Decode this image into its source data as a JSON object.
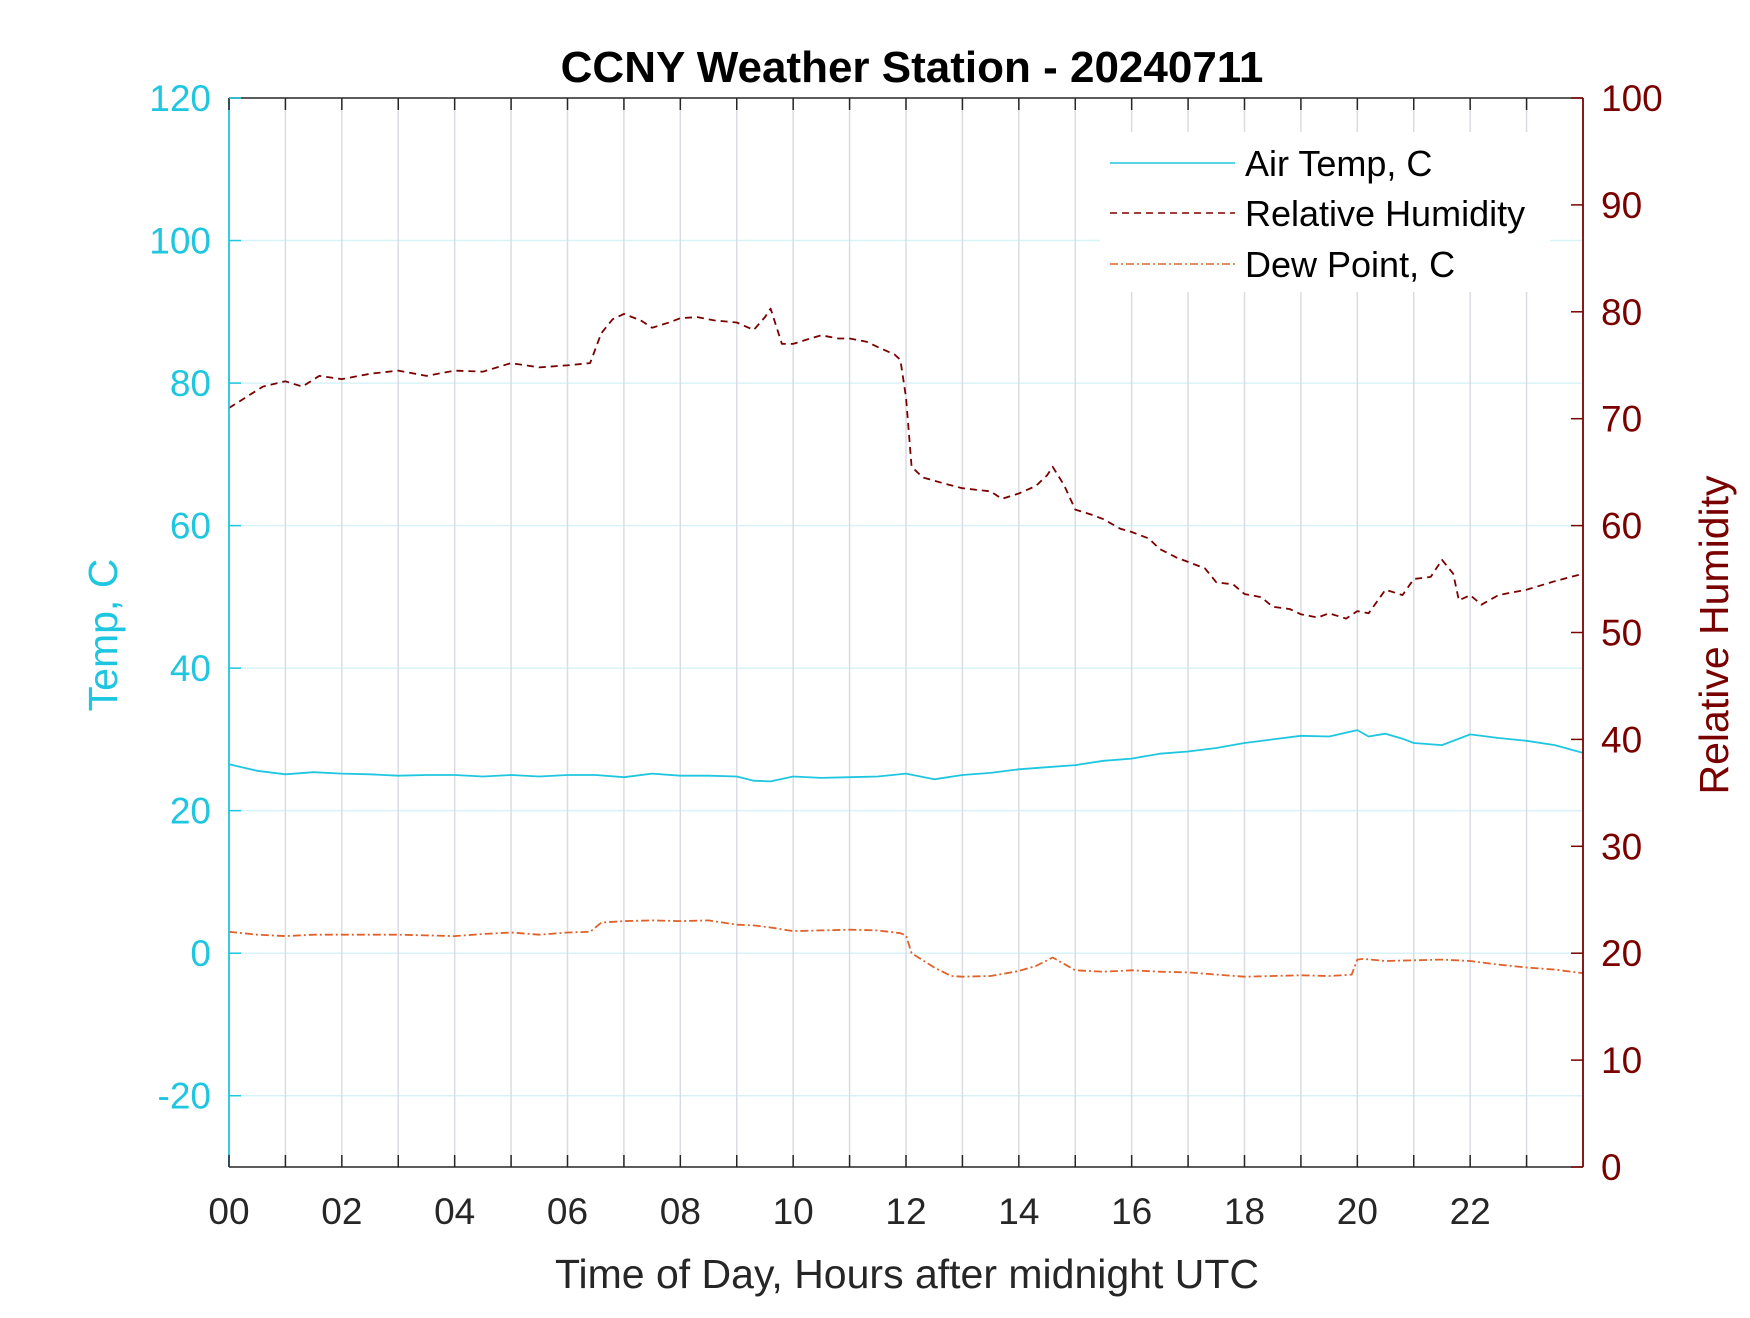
{
  "colors": {
    "left_axis": "#1fc6e0",
    "right_axis": "#7a0000",
    "air_temp": "#1fc6e0",
    "humidity": "#7a0000",
    "dew_point": "#e0622a",
    "grid_vertical": "#d9dde3",
    "grid_horizontal": "#d8f3f8"
  },
  "chart_data": {
    "type": "line",
    "title": "CCNY Weather Station - 20240711",
    "xlabel": "Time of Day, Hours after midnight UTC",
    "ylabel_left": "Temp, C",
    "ylabel_right": "Relative Humidity",
    "xlim": [
      0,
      24
    ],
    "ylim_left": [
      -30,
      120
    ],
    "ylim_right": [
      0,
      100
    ],
    "x_ticks": [
      0,
      2,
      4,
      6,
      8,
      10,
      12,
      14,
      16,
      18,
      20,
      22
    ],
    "x_tick_labels": [
      "00",
      "02",
      "04",
      "06",
      "08",
      "10",
      "12",
      "14",
      "16",
      "18",
      "20",
      "22"
    ],
    "x_minor_grid": [
      1,
      3,
      5,
      7,
      9,
      11,
      13,
      15,
      17,
      19,
      21,
      23
    ],
    "y_left_ticks": [
      -20,
      0,
      20,
      40,
      60,
      80,
      100,
      120
    ],
    "y_left_tick_labels": [
      "-20",
      "0",
      "20",
      "40",
      "60",
      "80",
      "100",
      "120"
    ],
    "y_right_ticks": [
      0,
      10,
      20,
      30,
      40,
      50,
      60,
      70,
      80,
      90,
      100
    ],
    "y_right_tick_labels": [
      "0",
      "10",
      "20",
      "30",
      "40",
      "50",
      "60",
      "70",
      "80",
      "90",
      "100"
    ],
    "grid": true,
    "legend_position": "top-right",
    "series": [
      {
        "name": "Air Temp, C",
        "axis": "left",
        "style": "solid",
        "x": [
          0,
          0.5,
          1,
          1.5,
          2,
          2.5,
          3,
          3.5,
          4,
          4.5,
          5,
          5.5,
          6,
          6.5,
          7,
          7.5,
          8,
          8.5,
          9,
          9.3,
          9.6,
          10,
          10.5,
          11,
          11.5,
          12,
          12.5,
          13,
          13.5,
          14,
          14.5,
          15,
          15.5,
          16,
          16.5,
          17,
          17.5,
          18,
          18.5,
          19,
          19.5,
          20,
          20.2,
          20.5,
          20.8,
          21,
          21.5,
          22,
          22.5,
          23,
          23.5,
          24
        ],
        "y": [
          26.5,
          25.6,
          25.1,
          25.4,
          25.2,
          25.1,
          24.9,
          25.0,
          25.0,
          24.8,
          25.0,
          24.8,
          25.0,
          25.0,
          24.7,
          25.2,
          24.9,
          24.9,
          24.8,
          24.2,
          24.1,
          24.8,
          24.6,
          24.7,
          24.8,
          25.2,
          24.4,
          25.0,
          25.3,
          25.8,
          26.1,
          26.4,
          27.0,
          27.3,
          28.0,
          28.3,
          28.8,
          29.5,
          30.0,
          30.5,
          30.4,
          31.3,
          30.4,
          30.8,
          30.1,
          29.5,
          29.2,
          30.7,
          30.2,
          29.8,
          29.2,
          28.1
        ]
      },
      {
        "name": "Relative Humidity",
        "axis": "right",
        "style": "dashed",
        "x": [
          0,
          0.3,
          0.6,
          1,
          1.3,
          1.6,
          2,
          2.5,
          3,
          3.5,
          4,
          4.5,
          5,
          5.5,
          6,
          6.4,
          6.6,
          6.8,
          7.0,
          7.3,
          7.5,
          7.8,
          8.0,
          8.3,
          8.6,
          9.0,
          9.3,
          9.5,
          9.6,
          9.8,
          10.0,
          10.3,
          10.5,
          10.8,
          11.0,
          11.3,
          11.5,
          11.8,
          11.9,
          12.0,
          12.1,
          12.3,
          12.7,
          13.0,
          13.5,
          13.7,
          14.0,
          14.3,
          14.5,
          14.6,
          14.8,
          15.0,
          15.3,
          15.5,
          15.8,
          16.0,
          16.3,
          16.5,
          16.8,
          17.0,
          17.3,
          17.5,
          17.8,
          18.0,
          18.3,
          18.5,
          18.8,
          19.0,
          19.3,
          19.5,
          19.8,
          20.0,
          20.2,
          20.5,
          20.8,
          21.0,
          21.3,
          21.5,
          21.7,
          21.8,
          22.0,
          22.2,
          22.5,
          23.0,
          23.5,
          24.0
        ],
        "y": [
          71.0,
          72.0,
          73.0,
          73.5,
          73.0,
          74.0,
          73.7,
          74.2,
          74.5,
          74.0,
          74.5,
          74.4,
          75.2,
          74.8,
          75.0,
          75.2,
          78.0,
          79.3,
          79.8,
          79.2,
          78.5,
          79.0,
          79.4,
          79.5,
          79.2,
          79.0,
          78.3,
          79.5,
          80.3,
          77.0,
          77.0,
          77.5,
          77.8,
          77.5,
          77.5,
          77.2,
          76.7,
          76.0,
          75.5,
          72.0,
          65.5,
          64.5,
          63.9,
          63.5,
          63.2,
          62.5,
          63.0,
          63.7,
          64.7,
          65.5,
          63.8,
          61.5,
          61.0,
          60.6,
          59.7,
          59.4,
          58.8,
          57.8,
          57.0,
          56.6,
          56.0,
          54.7,
          54.5,
          53.6,
          53.3,
          52.4,
          52.2,
          51.7,
          51.4,
          51.8,
          51.3,
          52.0,
          51.8,
          54.0,
          53.5,
          55.0,
          55.2,
          56.8,
          55.5,
          53.0,
          53.5,
          52.6,
          53.5,
          54.0,
          54.8,
          55.5
        ]
      },
      {
        "name": "Dew Point, C",
        "axis": "left",
        "style": "dash-dot",
        "x": [
          0,
          0.5,
          1,
          1.5,
          2,
          2.5,
          3,
          3.5,
          4,
          4.5,
          5,
          5.5,
          6,
          6.4,
          6.6,
          7,
          7.5,
          8,
          8.5,
          9,
          9.3,
          9.6,
          10,
          10.5,
          11,
          11.5,
          11.9,
          12,
          12.1,
          12.5,
          12.8,
          13,
          13.5,
          14,
          14.3,
          14.6,
          15,
          15.5,
          16,
          16.5,
          17,
          17.5,
          18,
          18.5,
          19,
          19.5,
          19.9,
          20,
          20.1,
          20.5,
          21,
          21.5,
          22,
          22.5,
          23,
          23.5,
          24
        ],
        "y": [
          3.0,
          2.6,
          2.4,
          2.6,
          2.6,
          2.6,
          2.6,
          2.5,
          2.4,
          2.7,
          2.9,
          2.6,
          2.9,
          3.0,
          4.3,
          4.5,
          4.6,
          4.5,
          4.6,
          4.0,
          3.9,
          3.6,
          3.1,
          3.2,
          3.3,
          3.2,
          2.8,
          2.5,
          0.0,
          -2.0,
          -3.2,
          -3.3,
          -3.2,
          -2.5,
          -1.8,
          -0.6,
          -2.4,
          -2.6,
          -2.4,
          -2.6,
          -2.7,
          -3.0,
          -3.3,
          -3.2,
          -3.1,
          -3.2,
          -3.0,
          -0.9,
          -0.8,
          -1.1,
          -1.0,
          -0.9,
          -1.1,
          -1.6,
          -2.0,
          -2.3,
          -2.8
        ]
      }
    ]
  }
}
